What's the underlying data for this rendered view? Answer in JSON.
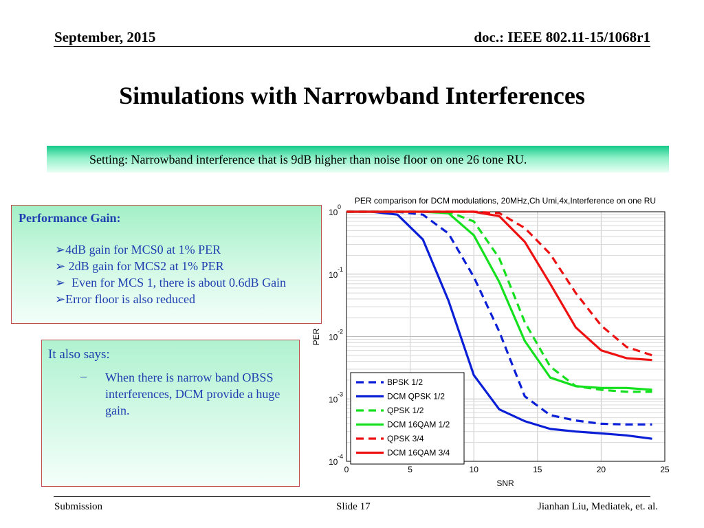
{
  "header": {
    "date": "September, 2015",
    "doc": "doc.: IEEE 802.11-15/1068r1"
  },
  "title": "Simulations with Narrowband Interferences",
  "banner": {
    "text": "Setting: Narrowband interference that is 9dB higher than noise floor on one 26 tone RU."
  },
  "performance": {
    "title": "Performance Gain:",
    "items": [
      "4dB gain for MCS0 at 1% PER",
      " 2dB gain for MCS2 at 1% PER",
      "  Even for MCS 1, there is about 0.6dB Gain",
      "Error floor is also reduced"
    ],
    "bullet": "➢"
  },
  "also": {
    "title": "It also says:",
    "dash": "–",
    "text": "When there is narrow band OBSS interferences, DCM provide a huge gain."
  },
  "footer": {
    "left": "Submission",
    "center": "Slide 17",
    "right": "Jianhan Liu,  Mediatek, et. al."
  },
  "chart_data": {
    "type": "line",
    "title": "PER comparison for DCM modulations, 20MHz,Ch Umi,4x,Interference on one RU",
    "xlabel": "SNR",
    "ylabel": "PER",
    "xlim": [
      0,
      25
    ],
    "ylim": [
      0.0001,
      1
    ],
    "yscale": "log",
    "grid": true,
    "legend_position": "bottom-left",
    "x_ticks": [
      "0",
      "5",
      "10",
      "15",
      "20",
      "25"
    ],
    "y_ticks": [
      {
        "base": "10",
        "exp": "0"
      },
      {
        "base": "10",
        "exp": "-1"
      },
      {
        "base": "10",
        "exp": "-2"
      },
      {
        "base": "10",
        "exp": "-3"
      },
      {
        "base": "10",
        "exp": "-4"
      }
    ],
    "series": [
      {
        "name": "BPSK 1/2",
        "color": "#0a1fd6",
        "dashed": true,
        "x": [
          0,
          2,
          4,
          6,
          8,
          10,
          12,
          14,
          16,
          18,
          20,
          22,
          24
        ],
        "y": [
          1,
          1,
          1,
          0.9,
          0.45,
          0.09,
          0.012,
          0.0011,
          0.00055,
          0.00045,
          0.0004,
          0.00039,
          0.00039
        ]
      },
      {
        "name": "DCM QPSK 1/2",
        "color": "#0a1fd6",
        "dashed": false,
        "x": [
          0,
          2,
          4,
          6,
          8,
          10,
          12,
          14,
          16,
          18,
          20,
          22,
          24
        ],
        "y": [
          1,
          1,
          0.9,
          0.36,
          0.038,
          0.0024,
          0.00068,
          0.00044,
          0.00033,
          0.0003,
          0.00028,
          0.00026,
          0.00023
        ]
      },
      {
        "name": "QPSK 1/2",
        "color": "#14e01e",
        "dashed": true,
        "x": [
          0,
          2,
          4,
          6,
          8,
          10,
          12,
          14,
          16,
          18,
          20,
          22,
          24
        ],
        "y": [
          1,
          1,
          1,
          1,
          1,
          0.7,
          0.18,
          0.017,
          0.0033,
          0.0016,
          0.0014,
          0.0013,
          0.0013
        ]
      },
      {
        "name": "DCM 16QAM 1/2",
        "color": "#14e01e",
        "dashed": false,
        "x": [
          0,
          2,
          4,
          6,
          8,
          10,
          12,
          14,
          16,
          18,
          20,
          22,
          24
        ],
        "y": [
          1,
          1,
          1,
          1,
          0.95,
          0.42,
          0.075,
          0.0085,
          0.0022,
          0.0016,
          0.0015,
          0.0015,
          0.0014
        ]
      },
      {
        "name": "QPSK 3/4",
        "color": "#ee1111",
        "dashed": true,
        "x": [
          0,
          2,
          4,
          6,
          8,
          10,
          12,
          14,
          16,
          18,
          20,
          22,
          24
        ],
        "y": [
          1,
          1,
          1,
          1,
          1,
          1,
          0.95,
          0.55,
          0.21,
          0.05,
          0.015,
          0.0068,
          0.005
        ]
      },
      {
        "name": "DCM 16QAM 3/4",
        "color": "#ee1111",
        "dashed": false,
        "x": [
          0,
          2,
          4,
          6,
          8,
          10,
          12,
          14,
          16,
          18,
          20,
          22,
          24
        ],
        "y": [
          1,
          1,
          1,
          1,
          1,
          1,
          0.85,
          0.33,
          0.07,
          0.014,
          0.006,
          0.0045,
          0.0042
        ]
      }
    ]
  }
}
